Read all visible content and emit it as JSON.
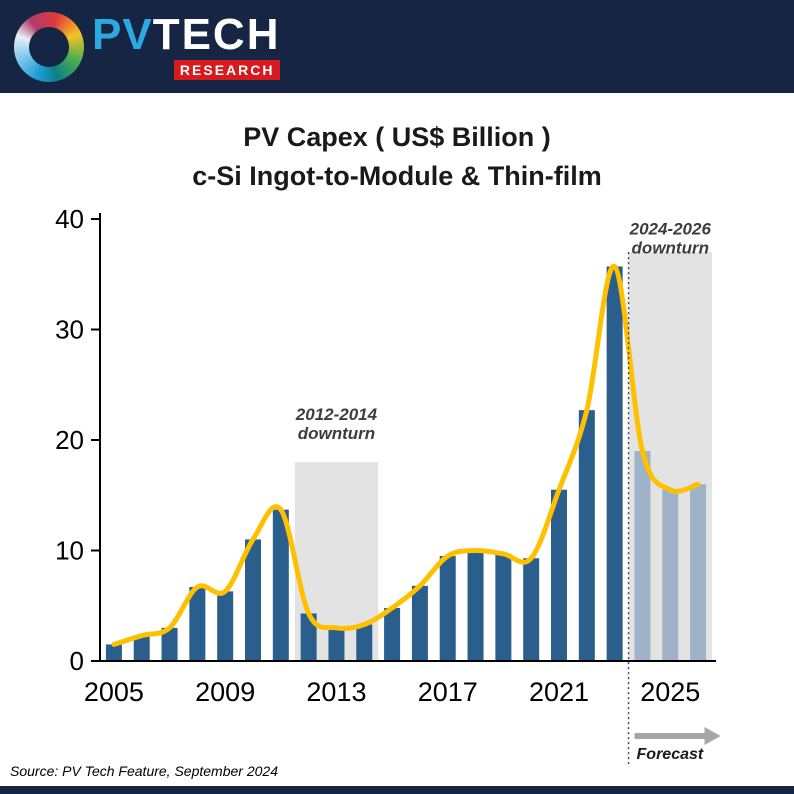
{
  "header": {
    "logo": {
      "pv": "PV",
      "tech": "TECH",
      "research": "RESEARCH"
    }
  },
  "title": {
    "line1": "PV Capex ( US$ Billion )",
    "line2": "c-Si Ingot-to-Module & Thin-film"
  },
  "chart_data": {
    "type": "bar",
    "title": "PV Capex ( US$ Billion )",
    "subtitle": "c-Si Ingot-to-Module & Thin-film",
    "x": [
      2005,
      2006,
      2007,
      2008,
      2009,
      2010,
      2011,
      2012,
      2013,
      2014,
      2015,
      2016,
      2017,
      2018,
      2019,
      2020,
      2021,
      2022,
      2023,
      2024,
      2025,
      2026
    ],
    "values": [
      1.5,
      2.3,
      3.0,
      6.7,
      6.3,
      11.0,
      13.7,
      4.3,
      3.0,
      3.3,
      4.8,
      6.8,
      9.5,
      10.0,
      9.7,
      9.3,
      15.5,
      22.7,
      35.7,
      19.0,
      15.5,
      16.0
    ],
    "forecast_start_year": 2024,
    "ylim": [
      0,
      40
    ],
    "yticks": [
      0,
      10,
      20,
      30,
      40
    ],
    "xtick_years": [
      2005,
      2009,
      2013,
      2017,
      2021,
      2025
    ],
    "colors": {
      "bar": "#2A5E8C",
      "forecast_bar": "#9FB3C8",
      "line": "#FFC000",
      "region": "#E3E3E3",
      "axis": "#000000",
      "arrow": "#A6A6A6",
      "annotation": "#3D3D3D"
    },
    "annotations": [
      {
        "lines": [
          "2012-2014",
          "downturn"
        ],
        "from_year": 2012,
        "to_year": 2014,
        "region_top": 18,
        "label_top": 21.8
      },
      {
        "lines": [
          "2024-2026",
          "downturn"
        ],
        "from_year": 2024,
        "to_year": 2026,
        "region_top": 37,
        "label_top": 38.6
      }
    ],
    "forecast_label": "Forecast",
    "legend": "none",
    "grid": false
  },
  "footer": {
    "source": "Source: PV Tech Feature, September 2024"
  }
}
